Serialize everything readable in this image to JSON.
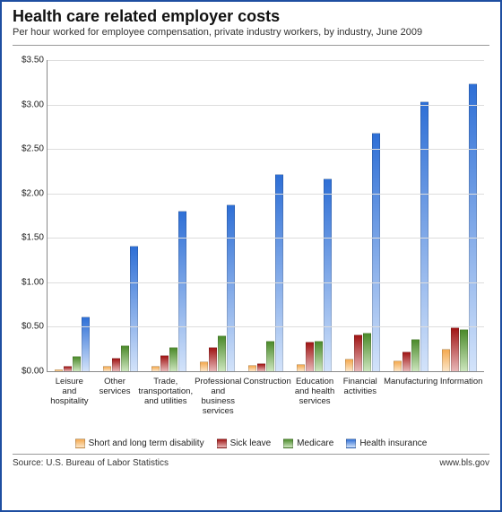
{
  "header": {
    "title": "Health care related employer costs",
    "subtitle": "Per hour worked for employee compensation, private industry workers, by industry, June 2009"
  },
  "chart": {
    "type": "bar",
    "y": {
      "min": 0,
      "max": 3.5,
      "step": 0.5,
      "tick_prefix": "$",
      "tick_decimals": 2
    },
    "series": [
      {
        "key": "disability",
        "label": "Short and long term disability",
        "top_color": "#f4a94f",
        "bottom_color": "#fce6c8"
      },
      {
        "key": "sick",
        "label": "Sick leave",
        "top_color": "#a01414",
        "bottom_color": "#e8b8b8"
      },
      {
        "key": "medicare",
        "label": "Medicare",
        "top_color": "#4b8a2a",
        "bottom_color": "#cde6be"
      },
      {
        "key": "health",
        "label": "Health insurance",
        "top_color": "#2e6fd6",
        "bottom_color": "#d3e3fa"
      }
    ],
    "categories": [
      {
        "label": "Leisure and hospitality",
        "values": {
          "disability": 0.02,
          "sick": 0.06,
          "medicare": 0.17,
          "health": 0.62
        }
      },
      {
        "label": "Other services",
        "values": {
          "disability": 0.06,
          "sick": 0.15,
          "medicare": 0.29,
          "health": 1.41
        }
      },
      {
        "label": "Trade, transportation, and utilities",
        "values": {
          "disability": 0.06,
          "sick": 0.18,
          "medicare": 0.27,
          "health": 1.81
        }
      },
      {
        "label": "Professional and business services",
        "values": {
          "disability": 0.11,
          "sick": 0.27,
          "medicare": 0.4,
          "health": 1.88
        }
      },
      {
        "label": "Construction",
        "values": {
          "disability": 0.07,
          "sick": 0.09,
          "medicare": 0.34,
          "health": 2.22
        }
      },
      {
        "label": "Education and health services",
        "values": {
          "disability": 0.08,
          "sick": 0.33,
          "medicare": 0.34,
          "health": 2.17
        }
      },
      {
        "label": "Financial activities",
        "values": {
          "disability": 0.14,
          "sick": 0.41,
          "medicare": 0.43,
          "health": 2.68
        }
      },
      {
        "label": "Manufacturing",
        "values": {
          "disability": 0.12,
          "sick": 0.22,
          "medicare": 0.36,
          "health": 3.04
        }
      },
      {
        "label": "Information",
        "values": {
          "disability": 0.25,
          "sick": 0.49,
          "medicare": 0.47,
          "health": 3.24
        }
      }
    ],
    "background_color": "#ffffff",
    "grid_color": "#dddddd",
    "axis_color": "#888888",
    "title_fontsize": 18,
    "label_fontsize": 10
  },
  "footer": {
    "source": "Source: U.S. Bureau of Labor Statistics",
    "site": "www.bls.gov"
  }
}
